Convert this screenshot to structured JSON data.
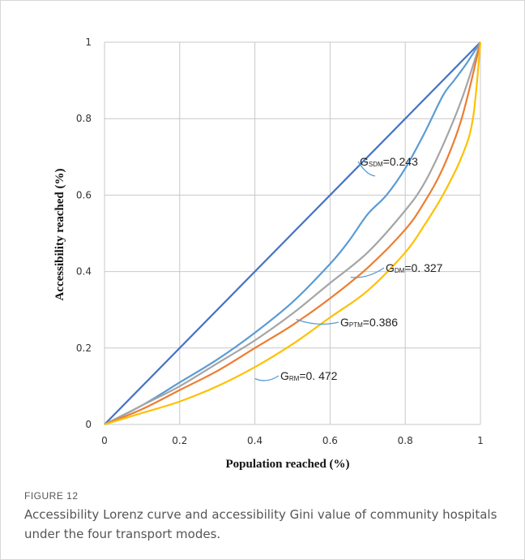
{
  "figure": {
    "label": "FIGURE 12",
    "caption": "Accessibility Lorenz curve and accessibility Gini value of community hospitals under the four transport modes."
  },
  "chart_data": {
    "type": "line",
    "xlabel": "Population reached (%)",
    "ylabel": "Accessibility reached (%)",
    "xlim": [
      0,
      1
    ],
    "ylim": [
      0,
      1
    ],
    "xticks": [
      "0",
      "0.2",
      "0.4",
      "0.6",
      "0.8",
      "1"
    ],
    "yticks": [
      "0",
      "0.2",
      "0.4",
      "0.6",
      "0.8",
      "1"
    ],
    "grid": true,
    "series": [
      {
        "key": "equality",
        "color": "#4472c4",
        "x": [
          0,
          1
        ],
        "y": [
          0,
          1
        ]
      },
      {
        "key": "sdm",
        "color": "#5b9bd5",
        "x": [
          0,
          0.1,
          0.2,
          0.3,
          0.4,
          0.5,
          0.6,
          0.65,
          0.7,
          0.75,
          0.8,
          0.85,
          0.9,
          0.93,
          0.96,
          0.98,
          1.0
        ],
        "y": [
          0,
          0.05,
          0.11,
          0.17,
          0.24,
          0.32,
          0.42,
          0.48,
          0.55,
          0.6,
          0.67,
          0.76,
          0.86,
          0.9,
          0.94,
          0.97,
          1.0
        ]
      },
      {
        "key": "dm",
        "color": "#a5a5a5",
        "x": [
          0,
          0.1,
          0.2,
          0.3,
          0.4,
          0.5,
          0.6,
          0.7,
          0.8,
          0.85,
          0.9,
          0.95,
          1.0
        ],
        "y": [
          0,
          0.05,
          0.1,
          0.16,
          0.22,
          0.29,
          0.37,
          0.45,
          0.56,
          0.63,
          0.73,
          0.85,
          1.0
        ]
      },
      {
        "key": "ptm",
        "color": "#ed7d31",
        "x": [
          0,
          0.1,
          0.2,
          0.3,
          0.4,
          0.5,
          0.6,
          0.7,
          0.8,
          0.85,
          0.9,
          0.95,
          1.0
        ],
        "y": [
          0,
          0.04,
          0.09,
          0.14,
          0.2,
          0.26,
          0.33,
          0.41,
          0.51,
          0.58,
          0.67,
          0.8,
          1.0
        ]
      },
      {
        "key": "rm",
        "color": "#ffc000",
        "x": [
          0,
          0.1,
          0.2,
          0.3,
          0.4,
          0.5,
          0.6,
          0.7,
          0.8,
          0.85,
          0.9,
          0.95,
          0.98,
          1.0
        ],
        "y": [
          0,
          0.03,
          0.06,
          0.1,
          0.15,
          0.21,
          0.28,
          0.35,
          0.45,
          0.52,
          0.6,
          0.7,
          0.8,
          1.0
        ]
      }
    ],
    "annotations": [
      {
        "main": "G",
        "sub": "SDM",
        "value": "=0.243",
        "point_x": 0.72,
        "point_y": 0.65
      },
      {
        "main": "G",
        "sub": "DM",
        "value": "=0. 327",
        "point_x": 0.655,
        "point_y": 0.385
      },
      {
        "main": "G",
        "sub": "PTM",
        "value": "=0.386",
        "point_x": 0.51,
        "point_y": 0.275
      },
      {
        "main": "G",
        "sub": "RM",
        "value": "=0. 472",
        "point_x": 0.4,
        "point_y": 0.12
      }
    ]
  }
}
